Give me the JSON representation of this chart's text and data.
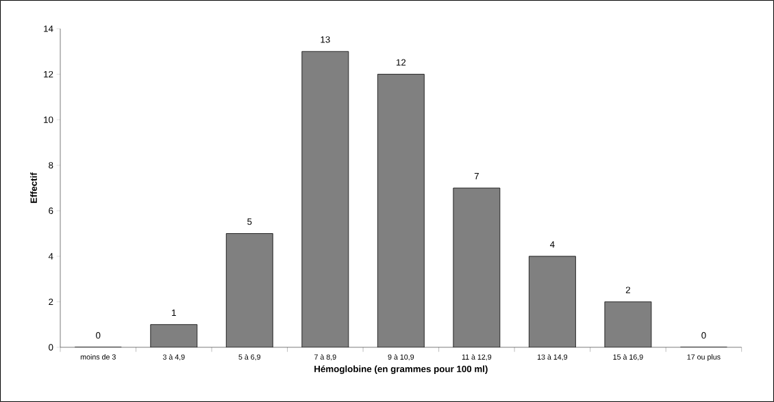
{
  "chart_data": {
    "type": "bar",
    "xlabel": "Hémoglobine (en grammes pour 100 ml)",
    "ylabel": "Effectif",
    "categories": [
      "moins de 3",
      "3 à 4,9",
      "5 à 6,9",
      "7 à 8,9",
      "9 à 10,9",
      "11 à 12,9",
      "13 à 14,9",
      "15 à 16,9",
      "17 ou plus"
    ],
    "values": [
      0,
      1,
      5,
      13,
      12,
      7,
      4,
      2,
      0
    ],
    "color": "#808080",
    "ylim": [
      0,
      14
    ],
    "yticks": [
      0,
      2,
      4,
      6,
      8,
      10,
      12,
      14
    ],
    "data_labels": true
  }
}
